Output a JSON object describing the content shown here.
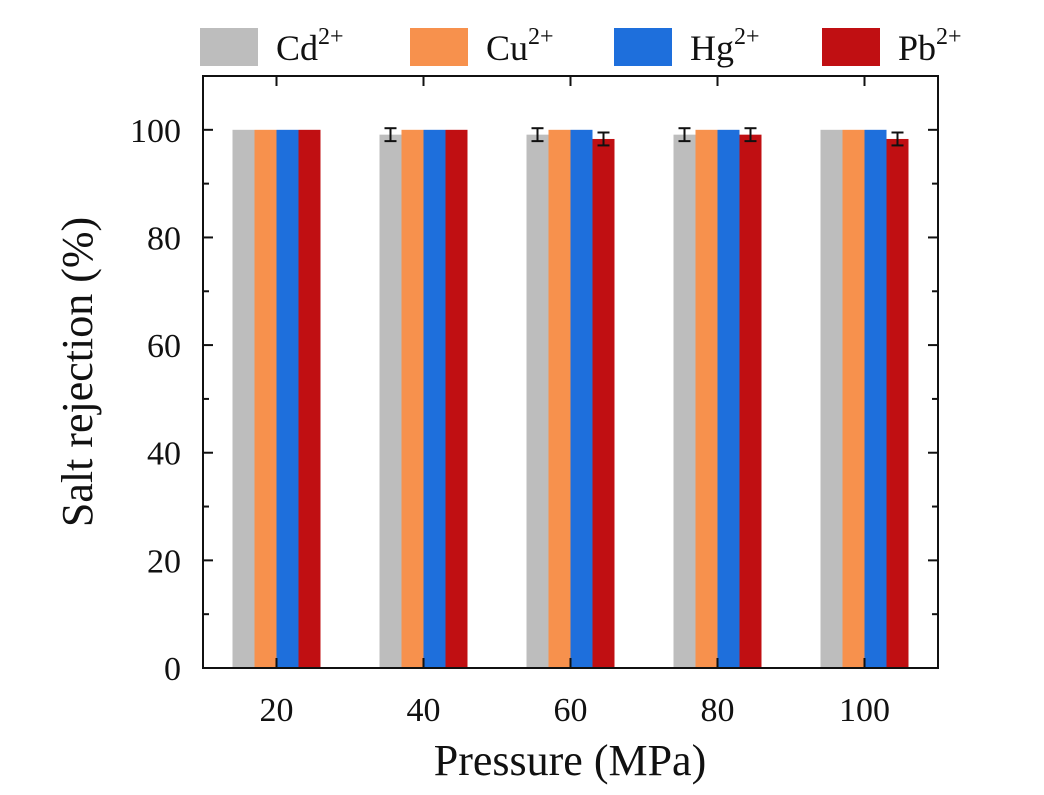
{
  "chart_data": {
    "type": "bar",
    "title": "",
    "xlabel": "Pressure (MPa)",
    "ylabel": "Salt rejection (%)",
    "categories": [
      "20",
      "40",
      "60",
      "80",
      "100"
    ],
    "ylim": [
      0,
      110
    ],
    "yticks": [
      "0",
      "20",
      "40",
      "60",
      "80",
      "100"
    ],
    "legend_position": "top",
    "grid": false,
    "series": [
      {
        "name": "Cd",
        "charge": "2+",
        "color": "#bdbdbd",
        "values": [
          100,
          99.1,
          99.1,
          99.1,
          100
        ],
        "errors": [
          0,
          1.2,
          1.2,
          1.2,
          0
        ]
      },
      {
        "name": "Cu",
        "charge": "2+",
        "color": "#f7914d",
        "values": [
          100,
          100,
          100,
          100,
          100
        ],
        "errors": [
          0,
          0,
          0,
          0,
          0
        ]
      },
      {
        "name": "Hg",
        "charge": "2+",
        "color": "#1e6fdc",
        "values": [
          100,
          100,
          100,
          100,
          100
        ],
        "errors": [
          0,
          0,
          0,
          0,
          0
        ]
      },
      {
        "name": "Pb",
        "charge": "2+",
        "color": "#c00f12",
        "values": [
          100,
          100,
          98.3,
          99.1,
          98.3
        ],
        "errors": [
          0,
          0,
          1.2,
          1.2,
          1.2
        ]
      }
    ]
  }
}
